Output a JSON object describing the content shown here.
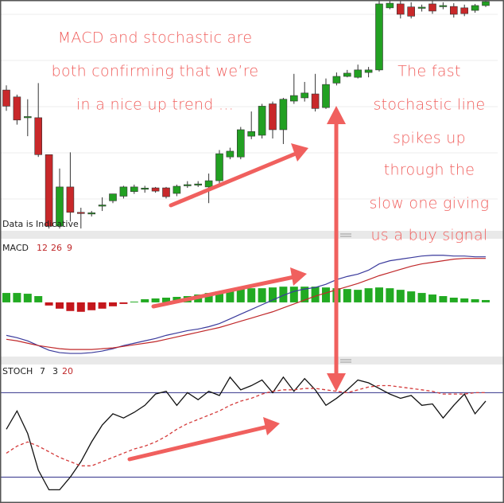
{
  "chart_data": [
    {
      "type": "candlestick",
      "ylim": [
        0,
        100
      ],
      "up_color": "#22a022",
      "down_color": "#c8282a",
      "watermark": "Data is Indicative",
      "open": [
        61,
        58,
        49,
        49,
        33,
        2,
        19,
        8,
        7.6,
        10.8,
        13,
        15,
        17,
        18,
        18.6,
        18.6,
        16.2,
        19.5,
        20,
        19,
        21.7,
        32,
        32,
        41,
        41.4,
        55,
        43.8,
        56.2,
        57.6,
        59.3,
        53.4,
        64,
        66.9,
        66.5,
        68.6,
        69.7,
        96.6,
        98.3,
        97,
        96.6,
        98.3,
        97.2,
        97.2,
        96.6,
        95.5,
        97.6
      ],
      "close": [
        54,
        48,
        49.5,
        33,
        2,
        19,
        8,
        7.5,
        7.8,
        11.2,
        16,
        19,
        19,
        18.5,
        17.2,
        14.8,
        19.3,
        20,
        20.3,
        21.7,
        33.4,
        34.5,
        43.8,
        43,
        54,
        43.8,
        57,
        58.6,
        59.7,
        53,
        63.4,
        66.9,
        68.3,
        69.7,
        69.7,
        98.3,
        98.6,
        93.8,
        93,
        96.9,
        95.2,
        97.6,
        93.8,
        94.1,
        97.6,
        99.3
      ],
      "high": [
        63,
        59,
        57,
        64,
        33,
        27,
        34,
        10,
        8.6,
        14.5,
        16,
        19.5,
        20,
        19.5,
        19,
        19,
        20,
        21.5,
        21.5,
        24.8,
        35,
        36,
        45,
        51.7,
        55,
        56,
        57.6,
        68,
        64.5,
        68,
        66,
        68.6,
        69.7,
        72,
        71,
        100,
        100,
        99.7,
        99,
        98,
        100,
        99,
        98.6,
        98,
        98.3,
        100
      ],
      "low": [
        52,
        46,
        41,
        32,
        1,
        1,
        4,
        1,
        6.2,
        8.6,
        12,
        14,
        16,
        16.5,
        16.5,
        14,
        15,
        18.6,
        19,
        12,
        20,
        31,
        31,
        39.7,
        40,
        40,
        37.6,
        55,
        56,
        51.7,
        52.8,
        63,
        66.5,
        66,
        66.5,
        69,
        96,
        92,
        92,
        95,
        94,
        96,
        92.4,
        93,
        94.5,
        97
      ],
      "annotations": [
        "MACD and stochastic are",
        "both confirming that we’re",
        "in a nice up trend ...",
        "The fast",
        "stochastic line",
        "spikes up",
        "through the",
        "slow one giving",
        "us a buy signal"
      ],
      "annotation_color": "#f0605e"
    },
    {
      "type": "combo",
      "title": "MACD",
      "params": [
        12,
        26,
        9
      ],
      "ylim": [
        -0.69,
        0.81
      ],
      "series": [
        {
          "kind": "bar",
          "color": "#22aa22",
          "negative_color": "#c4161c",
          "values": [
            0.12,
            0.12,
            0.11,
            0.08,
            -0.04,
            -0.08,
            -0.11,
            -0.12,
            -0.1,
            -0.08,
            -0.05,
            -0.02,
            0.01,
            0.04,
            0.05,
            0.06,
            0.07,
            0.08,
            0.1,
            0.12,
            0.14,
            0.16,
            0.17,
            0.18,
            0.18,
            0.19,
            0.2,
            0.2,
            0.2,
            0.2,
            0.19,
            0.18,
            0.17,
            0.16,
            0.18,
            0.19,
            0.18,
            0.16,
            0.14,
            0.12,
            0.1,
            0.08,
            0.06,
            0.05,
            0.04,
            0.03
          ]
        },
        {
          "kind": "line",
          "color": "#3a3a9c",
          "values": [
            -0.42,
            -0.45,
            -0.49,
            -0.55,
            -0.61,
            -0.64,
            -0.65,
            -0.65,
            -0.64,
            -0.62,
            -0.59,
            -0.55,
            -0.52,
            -0.49,
            -0.46,
            -0.42,
            -0.39,
            -0.36,
            -0.34,
            -0.31,
            -0.27,
            -0.21,
            -0.15,
            -0.09,
            -0.03,
            0.03,
            0.09,
            0.14,
            0.17,
            0.19,
            0.23,
            0.29,
            0.33,
            0.36,
            0.41,
            0.49,
            0.53,
            0.55,
            0.57,
            0.59,
            0.6,
            0.6,
            0.59,
            0.59,
            0.58,
            0.58
          ]
        },
        {
          "kind": "line",
          "color": "#c0282a",
          "values": [
            -0.47,
            -0.49,
            -0.52,
            -0.55,
            -0.57,
            -0.59,
            -0.6,
            -0.6,
            -0.6,
            -0.59,
            -0.58,
            -0.56,
            -0.54,
            -0.52,
            -0.5,
            -0.47,
            -0.44,
            -0.41,
            -0.38,
            -0.35,
            -0.32,
            -0.28,
            -0.24,
            -0.2,
            -0.16,
            -0.12,
            -0.07,
            -0.02,
            0.03,
            0.08,
            0.12,
            0.16,
            0.2,
            0.24,
            0.29,
            0.34,
            0.38,
            0.42,
            0.46,
            0.49,
            0.51,
            0.53,
            0.55,
            0.56,
            0.56,
            0.56
          ]
        }
      ]
    },
    {
      "type": "line",
      "title": "STOCH",
      "params": [
        7,
        3,
        20
      ],
      "ylim": [
        5,
        100
      ],
      "levels": [
        80,
        20
      ],
      "level_color": "#33338a",
      "series": [
        {
          "color": "#111111",
          "dash": false,
          "values": [
            54,
            67,
            51,
            25,
            11,
            11,
            20,
            31,
            45,
            57,
            65,
            62,
            66,
            71,
            79,
            81,
            71,
            80,
            75,
            81,
            78,
            91,
            82,
            85,
            89,
            80,
            91,
            81,
            90,
            82,
            71,
            76,
            82,
            89,
            87,
            83,
            79,
            76,
            78,
            71,
            72,
            62,
            71,
            79,
            65,
            74
          ]
        },
        {
          "color": "#d43a3a",
          "dash": true,
          "values": [
            37,
            42,
            45,
            42,
            38,
            34,
            31,
            28,
            28,
            31,
            34,
            37,
            40,
            42,
            45,
            49,
            54,
            58,
            61,
            64,
            67,
            71,
            74,
            76,
            79,
            81,
            82,
            82,
            83,
            83,
            82,
            81,
            80,
            82,
            84,
            85,
            85,
            84,
            83,
            82,
            81,
            79,
            79,
            79,
            80,
            80
          ]
        }
      ]
    }
  ]
}
